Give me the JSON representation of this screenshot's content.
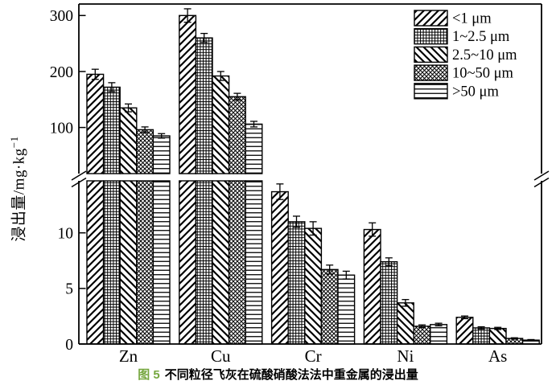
{
  "figure": {
    "caption": {
      "label": "图 5",
      "label_color": "#76a73f",
      "text": "不同粒径飞灰在硫酸硝酸法法中重金属的浸出量"
    },
    "ylabel_main": "浸出量/mg·kg",
    "ylabel_superscript": "−1"
  },
  "colors": {
    "foreground": "#000000",
    "background": "#ffffff"
  },
  "chart_data": {
    "type": "bar",
    "title": "",
    "xlabel": "",
    "ylabel": "浸出量/mg·kg⁻¹",
    "grid": false,
    "legend_position": "top-right-inside",
    "categories": [
      "Zn",
      "Cu",
      "Cr",
      "Ni",
      "As"
    ],
    "series": [
      {
        "name": "<1 μm",
        "pattern": "diagonal-forward",
        "values": [
          195,
          300,
          13.7,
          10.3,
          2.4
        ],
        "errors": [
          9,
          12,
          0.7,
          0.6,
          0.12
        ]
      },
      {
        "name": "1~2.5 μm",
        "pattern": "grid",
        "values": [
          172,
          260,
          11.0,
          7.4,
          1.45
        ],
        "errors": [
          8,
          8,
          0.5,
          0.35,
          0.1
        ]
      },
      {
        "name": "2.5~10 μm",
        "pattern": "diagonal-backward",
        "values": [
          135,
          192,
          10.4,
          3.7,
          1.4
        ],
        "errors": [
          7,
          8,
          0.6,
          0.3,
          0.1
        ]
      },
      {
        "name": "10~50 μm",
        "pattern": "diagonal-cross",
        "values": [
          96,
          155,
          6.7,
          1.6,
          0.5
        ],
        "errors": [
          5,
          6,
          0.4,
          0.12,
          0.06
        ]
      },
      {
        "name": ">50 μm",
        "pattern": "horizontal",
        "values": [
          85,
          106,
          6.2,
          1.75,
          0.35
        ],
        "errors": [
          4,
          5,
          0.35,
          0.12,
          0.05
        ]
      }
    ],
    "axis_break": {
      "lower_panel_range": [
        0,
        14.5
      ],
      "upper_panel_range": [
        14.5,
        320
      ],
      "lower_ticks": [
        0,
        5,
        10
      ],
      "upper_ticks": [
        100,
        200,
        300
      ]
    }
  }
}
